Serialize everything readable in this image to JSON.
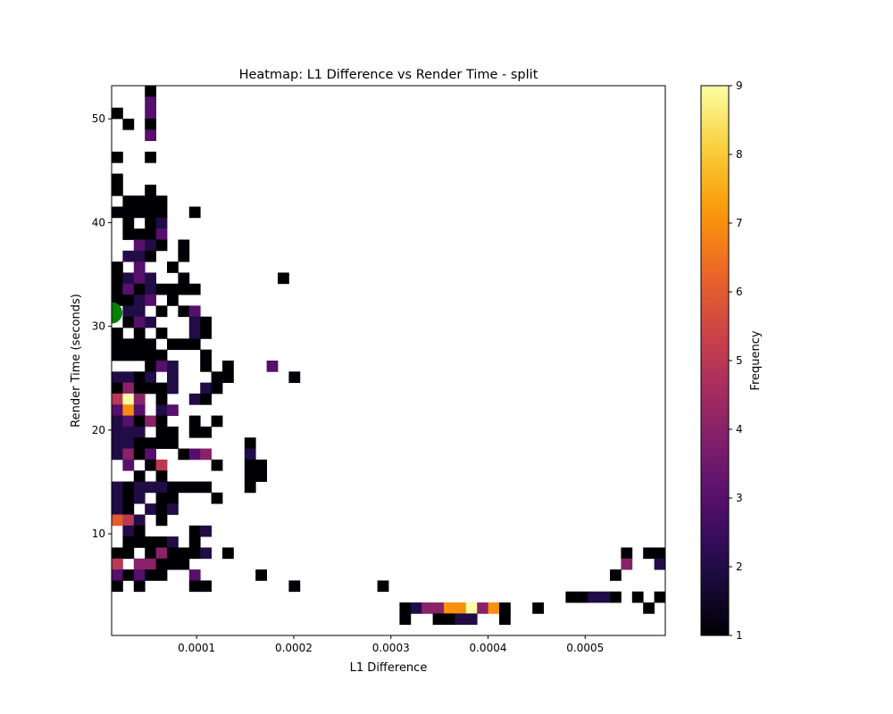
{
  "chart_data": {
    "type": "heatmap",
    "title": "Heatmap: L1 Difference vs Render Time - split",
    "xlabel": "L1 Difference",
    "ylabel": "Render Time (seconds)",
    "xlim": [
      1.25e-05,
      0.0005825
    ],
    "ylim": [
      0.2,
      53.2
    ],
    "x_ticks": [
      {
        "value": 0.0001,
        "label": "0.0001"
      },
      {
        "value": 0.0002,
        "label": "0.0002"
      },
      {
        "value": 0.0003,
        "label": "0.0003"
      },
      {
        "value": 0.0004,
        "label": "0.0004"
      },
      {
        "value": 0.0005,
        "label": "0.0005"
      }
    ],
    "y_ticks": [
      {
        "value": 10,
        "label": "10"
      },
      {
        "value": 20,
        "label": "20"
      },
      {
        "value": 30,
        "label": "30"
      },
      {
        "value": 40,
        "label": "40"
      },
      {
        "value": 50,
        "label": "50"
      }
    ],
    "x_bin_width": 1.14e-05,
    "y_bin_width": 1.06,
    "cells_note": "each cell: [x bin index from left, y bin index from bottom, frequency]",
    "cells": [
      [
        3,
        49,
        1
      ],
      [
        3,
        48,
        3
      ],
      [
        3,
        47,
        3
      ],
      [
        3,
        46,
        1
      ],
      [
        3,
        45,
        3
      ],
      [
        0,
        47,
        1
      ],
      [
        1,
        46,
        1
      ],
      [
        0,
        43,
        1
      ],
      [
        3,
        43,
        1
      ],
      [
        0,
        41,
        1
      ],
      [
        0,
        40,
        1
      ],
      [
        3,
        40,
        1
      ],
      [
        1,
        39,
        1
      ],
      [
        2,
        39,
        1
      ],
      [
        3,
        39,
        1
      ],
      [
        4,
        39,
        1
      ],
      [
        0,
        38,
        1
      ],
      [
        1,
        38,
        1
      ],
      [
        2,
        38,
        1
      ],
      [
        3,
        38,
        1
      ],
      [
        4,
        38,
        1
      ],
      [
        7,
        38,
        1
      ],
      [
        1,
        37,
        1
      ],
      [
        3,
        37,
        1
      ],
      [
        4,
        37,
        2
      ],
      [
        1,
        36,
        1
      ],
      [
        2,
        36,
        1
      ],
      [
        3,
        36,
        1
      ],
      [
        4,
        36,
        3
      ],
      [
        2,
        35,
        3
      ],
      [
        3,
        35,
        2
      ],
      [
        4,
        35,
        1
      ],
      [
        6,
        35,
        1
      ],
      [
        1,
        34,
        2
      ],
      [
        2,
        34,
        2
      ],
      [
        3,
        34,
        1
      ],
      [
        6,
        34,
        1
      ],
      [
        0,
        33,
        1
      ],
      [
        2,
        33,
        3
      ],
      [
        5,
        33,
        1
      ],
      [
        0,
        32,
        1
      ],
      [
        1,
        32,
        2
      ],
      [
        2,
        32,
        3
      ],
      [
        3,
        32,
        2
      ],
      [
        6,
        32,
        1
      ],
      [
        15,
        32,
        1
      ],
      [
        0,
        31,
        1
      ],
      [
        1,
        31,
        3
      ],
      [
        2,
        31,
        1
      ],
      [
        3,
        31,
        2
      ],
      [
        4,
        31,
        1
      ],
      [
        5,
        31,
        1
      ],
      [
        6,
        31,
        1
      ],
      [
        7,
        31,
        1
      ],
      [
        0,
        30,
        1
      ],
      [
        1,
        30,
        1
      ],
      [
        2,
        30,
        2
      ],
      [
        3,
        30,
        3
      ],
      [
        5,
        30,
        1
      ],
      [
        1,
        29,
        2
      ],
      [
        2,
        29,
        2
      ],
      [
        4,
        29,
        1
      ],
      [
        6,
        29,
        1
      ],
      [
        7,
        29,
        3
      ],
      [
        1,
        28,
        1
      ],
      [
        2,
        28,
        3
      ],
      [
        3,
        28,
        2
      ],
      [
        7,
        28,
        2
      ],
      [
        8,
        28,
        1
      ],
      [
        0,
        27,
        1
      ],
      [
        2,
        27,
        1
      ],
      [
        4,
        27,
        1
      ],
      [
        7,
        27,
        2
      ],
      [
        8,
        27,
        1
      ],
      [
        0,
        26,
        1
      ],
      [
        1,
        26,
        1
      ],
      [
        2,
        26,
        1
      ],
      [
        3,
        26,
        1
      ],
      [
        5,
        26,
        1
      ],
      [
        6,
        26,
        1
      ],
      [
        7,
        26,
        1
      ],
      [
        0,
        25,
        1
      ],
      [
        1,
        25,
        1
      ],
      [
        2,
        25,
        1
      ],
      [
        3,
        25,
        1
      ],
      [
        4,
        25,
        1
      ],
      [
        8,
        25,
        1
      ],
      [
        3,
        24,
        1
      ],
      [
        4,
        24,
        3
      ],
      [
        5,
        24,
        2
      ],
      [
        8,
        24,
        1
      ],
      [
        10,
        24,
        1
      ],
      [
        14,
        24,
        3
      ],
      [
        0,
        23,
        2
      ],
      [
        1,
        23,
        2
      ],
      [
        2,
        23,
        1
      ],
      [
        3,
        23,
        2
      ],
      [
        5,
        23,
        2
      ],
      [
        9,
        23,
        1
      ],
      [
        10,
        23,
        1
      ],
      [
        16,
        23,
        1
      ],
      [
        0,
        22,
        1
      ],
      [
        1,
        22,
        4
      ],
      [
        2,
        22,
        1
      ],
      [
        3,
        22,
        1
      ],
      [
        4,
        22,
        1
      ],
      [
        5,
        22,
        2
      ],
      [
        8,
        22,
        2
      ],
      [
        9,
        22,
        1
      ],
      [
        0,
        21,
        5
      ],
      [
        1,
        21,
        9
      ],
      [
        2,
        21,
        4
      ],
      [
        4,
        21,
        1
      ],
      [
        7,
        21,
        2
      ],
      [
        8,
        21,
        1
      ],
      [
        0,
        20,
        3
      ],
      [
        1,
        20,
        7
      ],
      [
        2,
        20,
        3
      ],
      [
        4,
        20,
        2
      ],
      [
        5,
        20,
        3
      ],
      [
        0,
        19,
        2
      ],
      [
        1,
        19,
        3
      ],
      [
        2,
        19,
        1
      ],
      [
        3,
        19,
        4
      ],
      [
        4,
        19,
        1
      ],
      [
        7,
        19,
        1
      ],
      [
        9,
        19,
        1
      ],
      [
        0,
        18,
        2
      ],
      [
        1,
        18,
        2
      ],
      [
        2,
        18,
        2
      ],
      [
        4,
        18,
        1
      ],
      [
        5,
        18,
        1
      ],
      [
        7,
        18,
        1
      ],
      [
        8,
        18,
        1
      ],
      [
        0,
        17,
        2
      ],
      [
        1,
        17,
        2
      ],
      [
        2,
        17,
        1
      ],
      [
        3,
        17,
        1
      ],
      [
        4,
        17,
        1
      ],
      [
        5,
        17,
        1
      ],
      [
        12,
        17,
        1
      ],
      [
        0,
        16,
        2
      ],
      [
        1,
        16,
        4
      ],
      [
        2,
        16,
        1
      ],
      [
        3,
        16,
        3
      ],
      [
        6,
        16,
        1
      ],
      [
        7,
        16,
        3
      ],
      [
        8,
        16,
        4
      ],
      [
        12,
        16,
        2
      ],
      [
        1,
        15,
        3
      ],
      [
        3,
        15,
        1
      ],
      [
        4,
        15,
        5
      ],
      [
        9,
        15,
        1
      ],
      [
        12,
        15,
        1
      ],
      [
        13,
        15,
        1
      ],
      [
        2,
        14,
        1
      ],
      [
        4,
        14,
        1
      ],
      [
        12,
        14,
        1
      ],
      [
        13,
        14,
        1
      ],
      [
        0,
        13,
        2
      ],
      [
        1,
        13,
        1
      ],
      [
        2,
        13,
        2
      ],
      [
        3,
        13,
        2
      ],
      [
        4,
        13,
        2
      ],
      [
        5,
        13,
        1
      ],
      [
        6,
        13,
        1
      ],
      [
        7,
        13,
        1
      ],
      [
        8,
        13,
        1
      ],
      [
        12,
        13,
        1
      ],
      [
        0,
        12,
        2
      ],
      [
        1,
        12,
        1
      ],
      [
        2,
        12,
        2
      ],
      [
        4,
        12,
        1
      ],
      [
        5,
        12,
        1
      ],
      [
        9,
        12,
        1
      ],
      [
        0,
        11,
        2
      ],
      [
        1,
        11,
        1
      ],
      [
        3,
        11,
        2
      ],
      [
        4,
        11,
        1
      ],
      [
        5,
        11,
        2
      ],
      [
        0,
        10,
        6
      ],
      [
        1,
        10,
        5
      ],
      [
        2,
        10,
        2
      ],
      [
        4,
        10,
        1
      ],
      [
        1,
        9,
        2
      ],
      [
        2,
        9,
        1
      ],
      [
        7,
        9,
        1
      ],
      [
        8,
        9,
        2
      ],
      [
        51,
        9,
        1
      ],
      [
        53,
        9,
        1
      ],
      [
        1,
        8,
        1
      ],
      [
        2,
        8,
        1
      ],
      [
        3,
        8,
        1
      ],
      [
        4,
        8,
        1
      ],
      [
        5,
        8,
        2
      ],
      [
        7,
        8,
        1
      ],
      [
        50,
        8,
        1
      ],
      [
        51,
        8,
        1
      ],
      [
        0,
        7,
        1
      ],
      [
        1,
        7,
        1
      ],
      [
        3,
        7,
        1
      ],
      [
        4,
        7,
        4
      ],
      [
        5,
        7,
        1
      ],
      [
        6,
        7,
        1
      ],
      [
        7,
        7,
        1
      ],
      [
        8,
        7,
        2
      ],
      [
        10,
        7,
        1
      ],
      [
        46,
        7,
        1
      ],
      [
        48,
        7,
        1
      ],
      [
        49,
        7,
        1
      ],
      [
        51,
        7,
        1
      ],
      [
        0,
        6,
        5
      ],
      [
        2,
        6,
        4
      ],
      [
        3,
        6,
        4
      ],
      [
        4,
        6,
        1
      ],
      [
        5,
        6,
        1
      ],
      [
        6,
        6,
        1
      ],
      [
        46,
        6,
        4
      ],
      [
        49,
        6,
        2
      ],
      [
        50,
        6,
        1
      ],
      [
        0,
        5,
        3
      ],
      [
        1,
        5,
        1
      ],
      [
        2,
        5,
        3
      ],
      [
        3,
        5,
        1
      ],
      [
        4,
        5,
        1
      ],
      [
        7,
        5,
        3
      ],
      [
        13,
        5,
        1
      ],
      [
        45,
        5,
        1
      ],
      [
        0,
        4,
        1
      ],
      [
        2,
        4,
        1
      ],
      [
        7,
        4,
        1
      ],
      [
        8,
        4,
        1
      ],
      [
        16,
        4,
        1
      ],
      [
        24,
        4,
        1
      ],
      [
        50,
        4,
        1
      ],
      [
        51,
        4,
        1
      ],
      [
        53,
        4,
        1
      ],
      [
        41,
        3,
        1
      ],
      [
        42,
        3,
        1
      ],
      [
        43,
        3,
        2
      ],
      [
        44,
        3,
        2
      ],
      [
        45,
        3,
        1
      ],
      [
        47,
        3,
        1
      ],
      [
        49,
        3,
        1
      ],
      [
        50,
        3,
        3
      ],
      [
        26,
        2,
        1
      ],
      [
        27,
        2,
        2
      ],
      [
        28,
        2,
        4
      ],
      [
        29,
        2,
        4
      ],
      [
        30,
        2,
        7
      ],
      [
        31,
        2,
        7
      ],
      [
        32,
        2,
        9
      ],
      [
        33,
        2,
        4
      ],
      [
        34,
        2,
        7
      ],
      [
        35,
        2,
        1
      ],
      [
        38,
        2,
        1
      ],
      [
        48,
        2,
        1
      ],
      [
        50,
        2,
        4
      ],
      [
        26,
        1,
        1
      ],
      [
        29,
        1,
        1
      ],
      [
        30,
        1,
        1
      ],
      [
        31,
        1,
        2
      ],
      [
        32,
        1,
        2
      ],
      [
        35,
        1,
        1
      ],
      [
        50,
        1,
        1
      ]
    ],
    "highlight_point": {
      "x": 1.25e-05,
      "y": 31.3,
      "color": "#008000"
    },
    "colorbar": {
      "label": "Frequency",
      "min": 1,
      "max": 9,
      "ticks": [
        "1",
        "2",
        "3",
        "4",
        "5",
        "6",
        "7",
        "8",
        "9"
      ],
      "colormap": "inferno"
    },
    "grid": false,
    "legend": "none"
  }
}
